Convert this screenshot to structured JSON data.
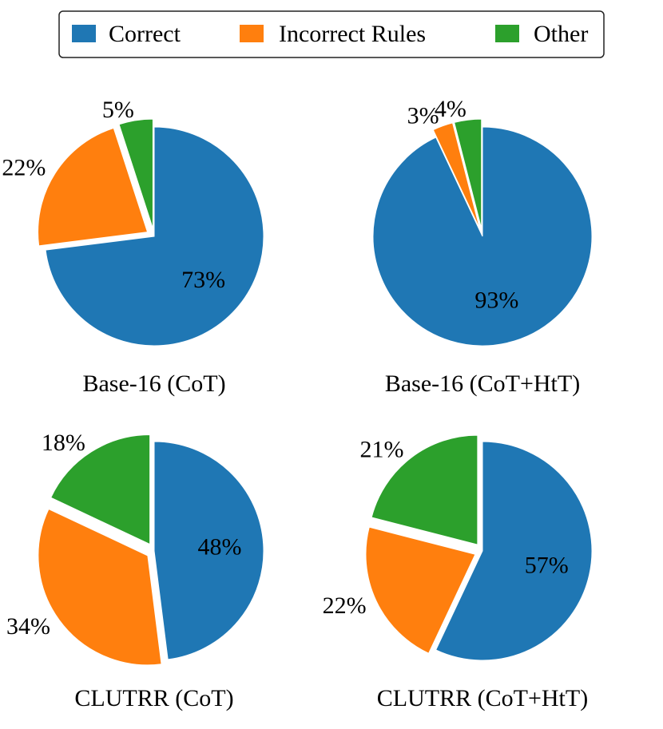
{
  "chart_data": {
    "type": "pie",
    "legend": {
      "placement": "top-center",
      "entries": [
        {
          "label": "Correct",
          "color": "#1f77b4"
        },
        {
          "label": "Incorrect Rules",
          "color": "#ff7f0e"
        },
        {
          "label": "Other",
          "color": "#2ca02c"
        }
      ]
    },
    "charts": [
      {
        "title": "Base-16 (CoT)",
        "slices": [
          {
            "label": "Correct",
            "value": 73,
            "text": "73%"
          },
          {
            "label": "Incorrect Rules",
            "value": 22,
            "text": "22%"
          },
          {
            "label": "Other",
            "value": 5,
            "text": "5%"
          }
        ]
      },
      {
        "title": "Base-16 (CoT+HtT)",
        "slices": [
          {
            "label": "Correct",
            "value": 93,
            "text": "93%"
          },
          {
            "label": "Incorrect Rules",
            "value": 3,
            "text": "3%"
          },
          {
            "label": "Other",
            "value": 4,
            "text": "4%"
          }
        ]
      },
      {
        "title": "CLUTRR (CoT)",
        "slices": [
          {
            "label": "Correct",
            "value": 48,
            "text": "48%"
          },
          {
            "label": "Incorrect Rules",
            "value": 34,
            "text": "34%"
          },
          {
            "label": "Other",
            "value": 18,
            "text": "18%"
          }
        ]
      },
      {
        "title": "CLUTRR (CoT+HtT)",
        "slices": [
          {
            "label": "Correct",
            "value": 57,
            "text": "57%"
          },
          {
            "label": "Incorrect Rules",
            "value": 22,
            "text": "22%"
          },
          {
            "label": "Other",
            "value": 21,
            "text": "21%"
          }
        ]
      }
    ]
  }
}
